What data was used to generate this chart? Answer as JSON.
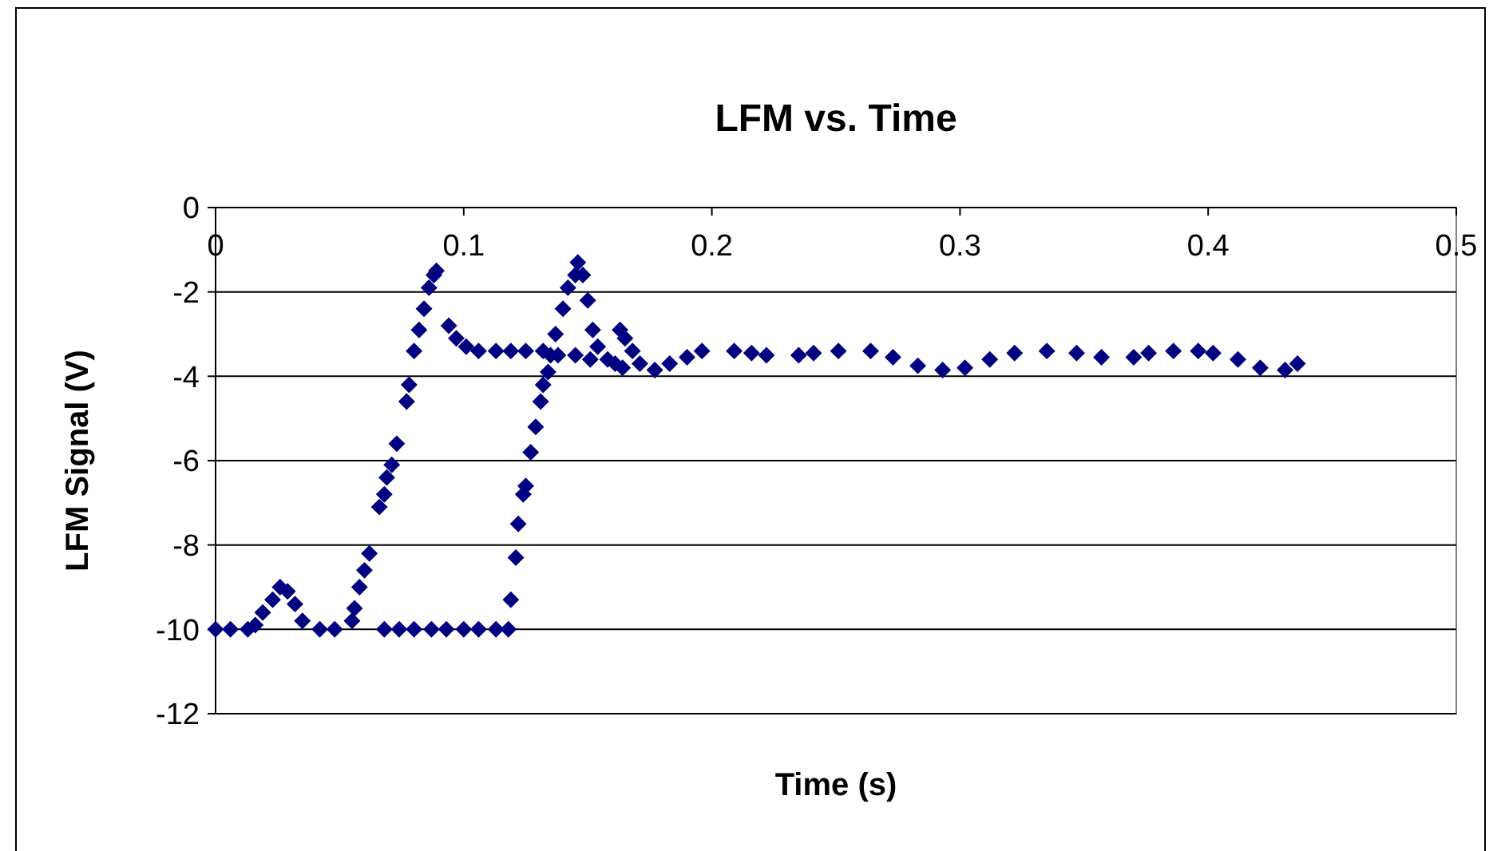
{
  "chart_data": {
    "type": "scatter",
    "title": "LFM vs. Time",
    "xlabel": "Time (s)",
    "ylabel": "LFM Signal (V)",
    "xlim": [
      0,
      0.5
    ],
    "ylim": [
      -12,
      0
    ],
    "xticks": [
      0,
      0.1,
      0.2,
      0.3,
      0.4,
      0.5
    ],
    "yticks": [
      0,
      -2,
      -4,
      -6,
      -8,
      -10,
      -12
    ],
    "grid": "y",
    "marker": "diamond",
    "series": [
      {
        "color": "#000080",
        "x": [
          0,
          0.006,
          0.013,
          0.016,
          0.019,
          0.023,
          0.026,
          0.029,
          0.032,
          0.035,
          0.042,
          0.048,
          0.055,
          0.056,
          0.058,
          0.06,
          0.062,
          0.066,
          0.068,
          0.069,
          0.071,
          0.073,
          0.077,
          0.078,
          0.08,
          0.082,
          0.084,
          0.086,
          0.088,
          0.089,
          0.094,
          0.097,
          0.101,
          0.106,
          0.113,
          0.119,
          0.125,
          0.132,
          0.138,
          0.068,
          0.074,
          0.08,
          0.087,
          0.093,
          0.1,
          0.106,
          0.113,
          0.118,
          0.119,
          0.121,
          0.122,
          0.124,
          0.125,
          0.127,
          0.129,
          0.131,
          0.132,
          0.134,
          0.135,
          0.137,
          0.14,
          0.142,
          0.145,
          0.146,
          0.148,
          0.15,
          0.152,
          0.154,
          0.158,
          0.161,
          0.163,
          0.165,
          0.168,
          0.171,
          0.145,
          0.151,
          0.164,
          0.177,
          0.183,
          0.19,
          0.196,
          0.209,
          0.216,
          0.222,
          0.235,
          0.241,
          0.251,
          0.264,
          0.273,
          0.283,
          0.293,
          0.302,
          0.312,
          0.322,
          0.335,
          0.347,
          0.357,
          0.37,
          0.376,
          0.386,
          0.396,
          0.402,
          0.412,
          0.421,
          0.431,
          0.436
        ],
        "values": [
          -10,
          -10,
          -10,
          -9.9,
          -9.6,
          -9.3,
          -9.0,
          -9.1,
          -9.4,
          -9.8,
          -10,
          -10,
          -9.8,
          -9.5,
          -9.0,
          -8.6,
          -8.2,
          -7.1,
          -6.8,
          -6.4,
          -6.1,
          -5.6,
          -4.6,
          -4.2,
          -3.4,
          -2.9,
          -2.4,
          -1.9,
          -1.6,
          -1.5,
          -2.8,
          -3.1,
          -3.3,
          -3.4,
          -3.4,
          -3.4,
          -3.4,
          -3.4,
          -3.5,
          -10,
          -10,
          -10,
          -10,
          -10,
          -10,
          -10,
          -10,
          -10,
          -9.3,
          -8.3,
          -7.5,
          -6.8,
          -6.6,
          -5.8,
          -5.2,
          -4.6,
          -4.2,
          -3.9,
          -3.5,
          -3.0,
          -2.4,
          -1.9,
          -1.6,
          -1.3,
          -1.6,
          -2.2,
          -2.9,
          -3.3,
          -3.6,
          -3.7,
          -2.9,
          -3.1,
          -3.4,
          -3.7,
          -3.5,
          -3.6,
          -3.8,
          -3.85,
          -3.7,
          -3.55,
          -3.4,
          -3.4,
          -3.45,
          -3.5,
          -3.5,
          -3.45,
          -3.4,
          -3.4,
          -3.55,
          -3.75,
          -3.85,
          -3.8,
          -3.6,
          -3.45,
          -3.4,
          -3.45,
          -3.55,
          -3.55,
          -3.45,
          -3.4,
          -3.4,
          -3.45,
          -3.6,
          -3.8,
          -3.85,
          -3.7
        ]
      }
    ]
  }
}
